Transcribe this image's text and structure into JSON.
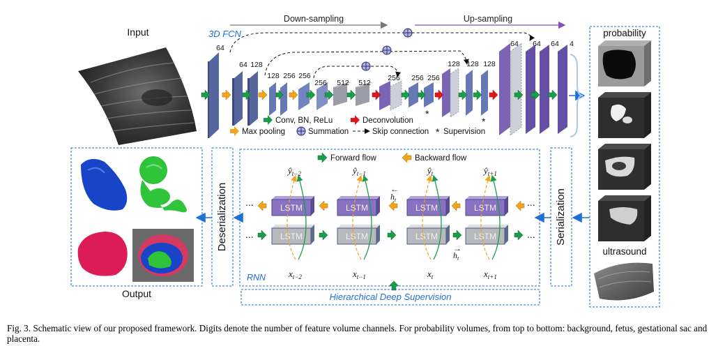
{
  "figure": {
    "input_label": "Input",
    "output_label": "Output",
    "fcn_label": "3D FCN",
    "downsampling_label": "Down-sampling",
    "upsampling_label": "Up-sampling",
    "channels": {
      "c1": "64",
      "c2": "64",
      "c3": "128",
      "c4": "128",
      "c5": "256",
      "c6": "256",
      "c7": "256",
      "c8": "512",
      "c9": "512",
      "c10": "256",
      "c11": "256",
      "c12": "256",
      "c13": "128",
      "c14": "128",
      "c15": "128",
      "c16": "64",
      "c17": "64",
      "c18": "64",
      "c19": "4"
    },
    "legend": {
      "conv": "Conv, BN, ReLu",
      "deconv": "Deconvolution",
      "maxpool": "Max pooling",
      "summation": "Summation",
      "skip": "Skip connection",
      "supervision": "Supervision",
      "star": "*"
    },
    "probability_label": "probability",
    "ultrasound_label": "ultrasound",
    "serialization_label": "Serialization",
    "deserialization_label": "Deserialization",
    "forward_flow": "Forward flow",
    "backward_flow": "Backward flow",
    "lstm": "LSTM",
    "rnn_label": "RNN",
    "hds_label": "Hierarchical Deep Supervision",
    "ellipsis": "...",
    "y_labels": [
      "ŷ_{t-2}",
      "ŷ_{t-1}",
      "ŷ_t",
      "ŷ_{t+1}"
    ],
    "x_labels": [
      "x_{t-2}",
      "x_{t-1}",
      "x_t",
      "x_{t+1}"
    ],
    "h_forward": "→h_t",
    "h_backward": "←h_t",
    "colors": {
      "conv_green": "#1a9d4a",
      "maxpool_orange": "#f2a51a",
      "deconv_red": "#e0161b",
      "layer_blue": "#6779b4",
      "layer_purple": "#7b64b3",
      "up_purple": "#7e4fb6",
      "accent_blue": "#1e6fd6",
      "lstm_gray": "#b8b9bd",
      "lstm_purple": "#8a72c2"
    }
  },
  "caption": "Fig. 3. Schematic view of our proposed framework. Digits denote the number of feature volume channels. For probability volumes, from top to bottom: background, fetus, gestational sac and placenta."
}
